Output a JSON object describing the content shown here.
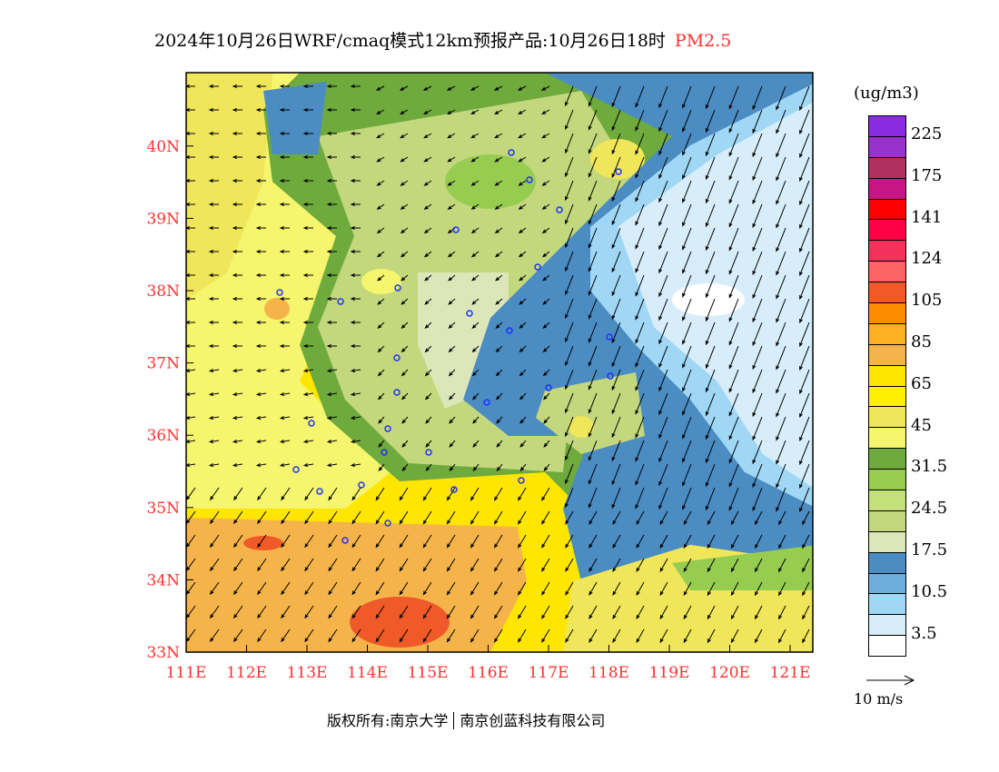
{
  "title": {
    "text": "2024年10月26日WRF/cmaq模式12km预报产品:10月26日18时",
    "variable": "PM2.5"
  },
  "axes": {
    "lon_labels": [
      "111E",
      "112E",
      "113E",
      "114E",
      "115E",
      "116E",
      "117E",
      "118E",
      "119E",
      "120E",
      "121E"
    ],
    "lat_labels": [
      "33N",
      "34N",
      "35N",
      "36N",
      "37N",
      "38N",
      "39N",
      "40N"
    ]
  },
  "legend": {
    "unit": "(ug/m3)",
    "colors": [
      "#8a2be2",
      "#9932cc",
      "#b03060",
      "#c71585",
      "#ff0000",
      "#ff0046",
      "#f5305a",
      "#ff6464",
      "#f05a28",
      "#ff8c00",
      "#ffb020",
      "#f5b44a",
      "#ffe600",
      "#fff000",
      "#f0e65a",
      "#f5f56e",
      "#6eaa3c",
      "#96cd50",
      "#c3e178",
      "#c3d77d",
      "#dce6b9",
      "#4b8cc3",
      "#6eaedc",
      "#a0d7f5",
      "#d7eefa",
      "#ffffff"
    ],
    "labels": [
      "225",
      "175",
      "141",
      "124",
      "105",
      "85",
      "65",
      "45",
      "31.5",
      "24.5",
      "17.5",
      "10.5",
      "3.5"
    ],
    "wind_reference": "10 m/s"
  },
  "footer": {
    "copyright": "版权所有:南京大学",
    "company": "南京创蓝科技有限公司"
  }
}
